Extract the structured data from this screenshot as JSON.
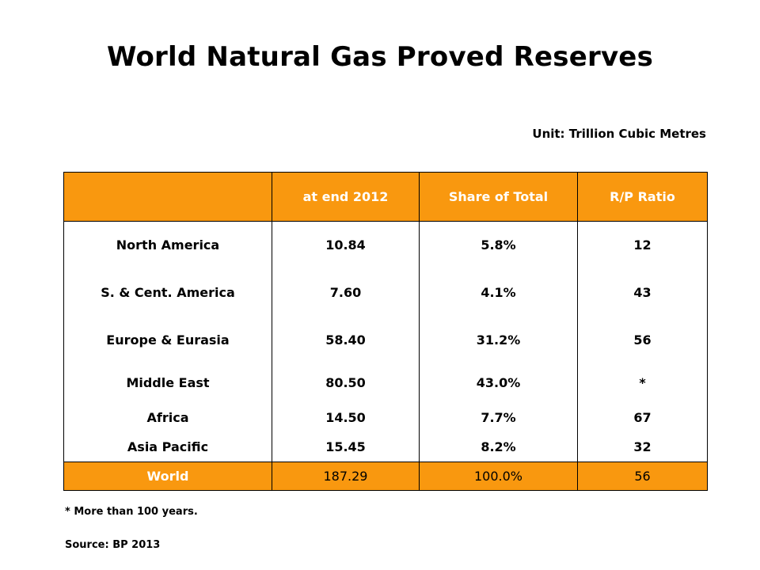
{
  "title": "World Natural Gas Proved Reserves",
  "unit": "Unit: Trillion Cubic Metres",
  "table": {
    "headers": [
      "",
      "at end 2012",
      "Share of Total",
      "R/P Ratio"
    ],
    "rows": [
      [
        "North America",
        "10.84",
        "5.8%",
        "12"
      ],
      [
        "S. & Cent. America",
        "7.60",
        "4.1%",
        "43"
      ],
      [
        "Europe & Eurasia",
        "58.40",
        "31.2%",
        "56"
      ],
      [
        "Middle East",
        "80.50",
        "43.0%",
        "*"
      ],
      [
        "Africa",
        "14.50",
        "7.7%",
        "67"
      ],
      [
        "Asia Pacific",
        "15.45",
        "8.2%",
        "32"
      ]
    ],
    "total": [
      "World",
      "187.29",
      "100.0%",
      "56"
    ]
  },
  "footnote": "* More than 100 years.",
  "source": "Source: BP 2013",
  "colors": {
    "accent": "#f9980f",
    "header_text": "#ffffff"
  }
}
